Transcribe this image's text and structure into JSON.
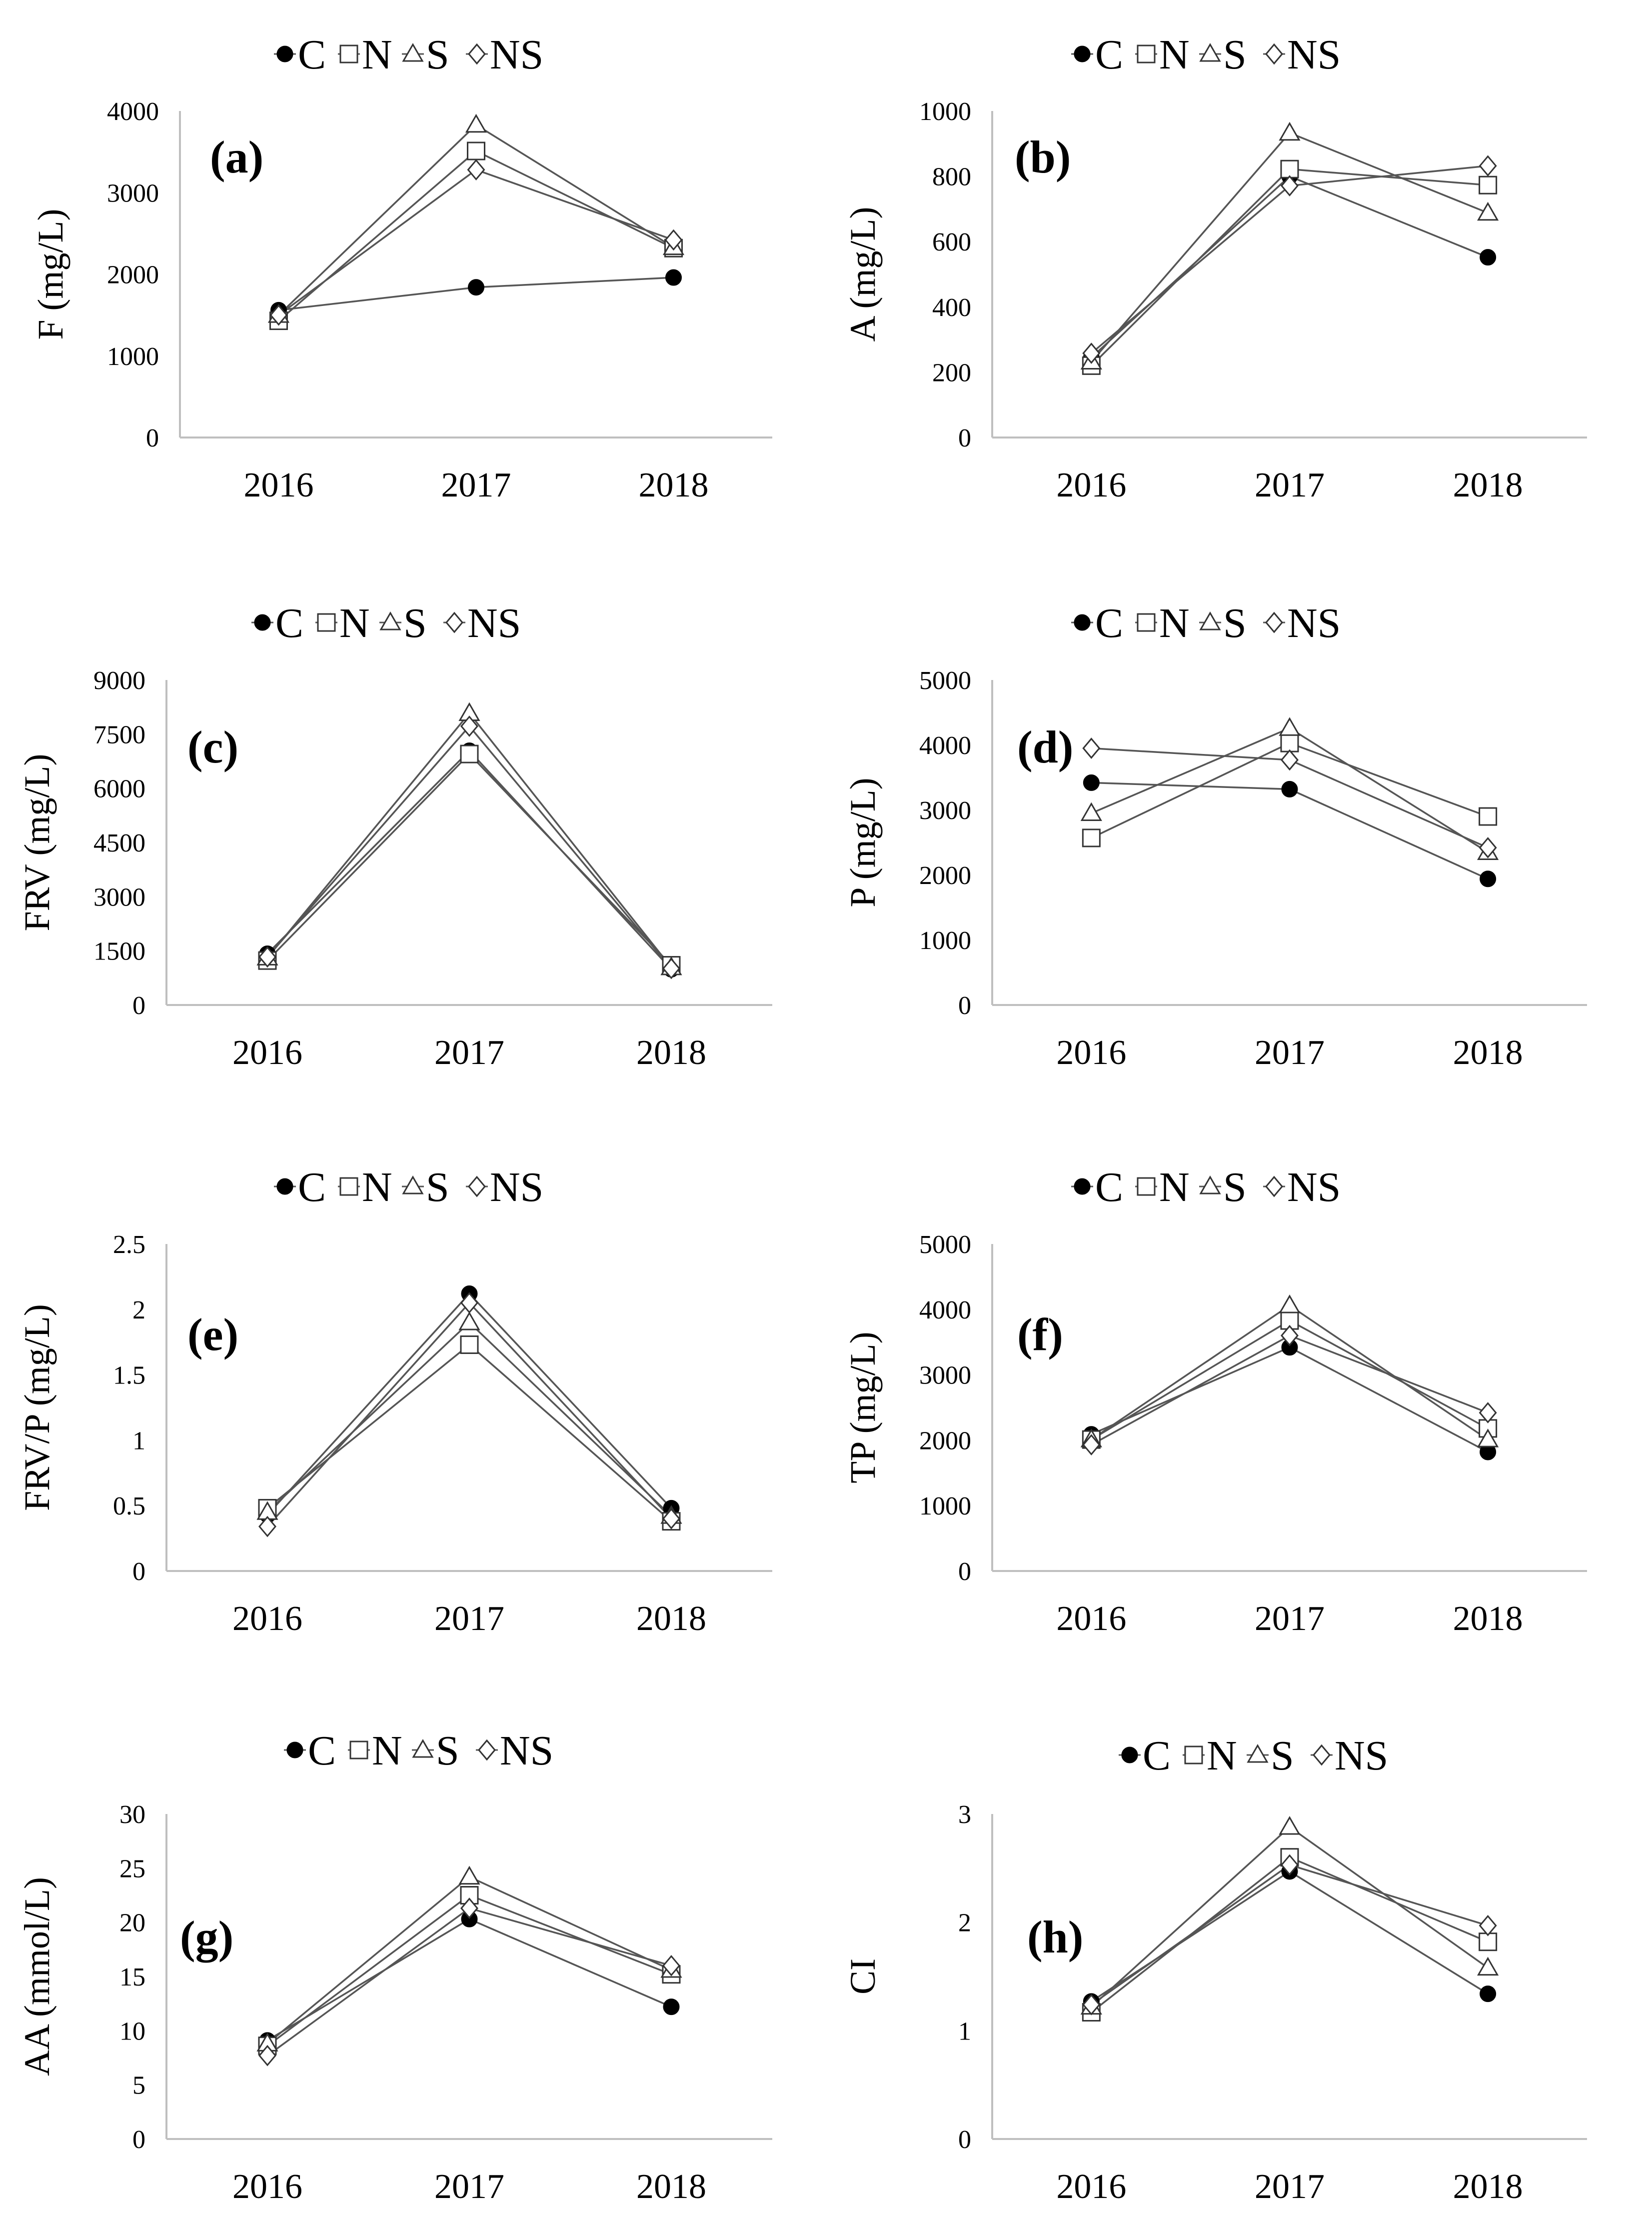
{
  "figure": {
    "legend": [
      "C",
      "N",
      "S",
      "NS"
    ],
    "colors": {
      "line": "#555555",
      "marker_fill_C": "#000000",
      "marker_open": "#ffffff",
      "axis": "#bfbfbf"
    }
  },
  "chart_data": [
    {
      "type": "line",
      "label": "(a)",
      "ylabel": "F (mg/L)",
      "categories": [
        "2016",
        "2017",
        "2018"
      ],
      "ylim": [
        0,
        4000
      ],
      "yticks": [
        "0",
        "1000",
        "2000",
        "3000",
        "4000"
      ],
      "series": [
        {
          "name": "C",
          "values": [
            1560,
            1840,
            1960
          ]
        },
        {
          "name": "N",
          "values": [
            1430,
            3510,
            2320
          ]
        },
        {
          "name": "S",
          "values": [
            1500,
            3830,
            2330
          ]
        },
        {
          "name": "NS",
          "values": [
            1500,
            3280,
            2420
          ]
        }
      ]
    },
    {
      "type": "line",
      "label": "(b)",
      "ylabel": "A (mg/L)",
      "categories": [
        "2016",
        "2017",
        "2018"
      ],
      "ylim": [
        0,
        1000
      ],
      "yticks": [
        "0",
        "200",
        "400",
        "600",
        "800",
        "1000"
      ],
      "series": [
        {
          "name": "C",
          "values": [
            245,
            800,
            552
          ]
        },
        {
          "name": "N",
          "values": [
            220,
            822,
            773
          ]
        },
        {
          "name": "S",
          "values": [
            232,
            933,
            688
          ]
        },
        {
          "name": "NS",
          "values": [
            258,
            771,
            832
          ]
        }
      ]
    },
    {
      "type": "line",
      "label": "(c)",
      "ylabel": "FRV (mg/L)",
      "categories": [
        "2016",
        "2017",
        "2018"
      ],
      "ylim": [
        0,
        9000
      ],
      "yticks": [
        "0",
        "1500",
        "3000",
        "4500",
        "6000",
        "7500",
        "9000"
      ],
      "series": [
        {
          "name": "C",
          "values": [
            1420,
            7040,
            990
          ]
        },
        {
          "name": "N",
          "values": [
            1230,
            6950,
            1100
          ]
        },
        {
          "name": "S",
          "values": [
            1310,
            8080,
            1040
          ]
        },
        {
          "name": "NS",
          "values": [
            1330,
            7720,
            1010
          ]
        }
      ]
    },
    {
      "type": "line",
      "label": "(d)",
      "ylabel": "P (mg/L)",
      "categories": [
        "2016",
        "2017",
        "2018"
      ],
      "ylim": [
        0,
        5000
      ],
      "yticks": [
        "0",
        "1000",
        "2000",
        "3000",
        "4000",
        "5000"
      ],
      "series": [
        {
          "name": "C",
          "values": [
            3420,
            3320,
            1940
          ]
        },
        {
          "name": "N",
          "values": [
            2570,
            4030,
            2900
          ]
        },
        {
          "name": "S",
          "values": [
            2950,
            4260,
            2350
          ]
        },
        {
          "name": "NS",
          "values": [
            3950,
            3770,
            2420
          ]
        }
      ]
    },
    {
      "type": "line",
      "label": "(e)",
      "ylabel": "FRV/P (mg/L)",
      "categories": [
        "2016",
        "2017",
        "2018"
      ],
      "ylim": [
        0,
        2.5
      ],
      "yticks": [
        "0",
        "0.5",
        "1",
        "1.5",
        "2",
        "2.5"
      ],
      "series": [
        {
          "name": "C",
          "values": [
            0.43,
            2.12,
            0.48
          ]
        },
        {
          "name": "N",
          "values": [
            0.48,
            1.73,
            0.38
          ]
        },
        {
          "name": "S",
          "values": [
            0.45,
            1.9,
            0.42
          ]
        },
        {
          "name": "NS",
          "values": [
            0.34,
            2.05,
            0.4
          ]
        }
      ]
    },
    {
      "type": "line",
      "label": "(f)",
      "ylabel": "TP (mg/L)",
      "categories": [
        "2016",
        "2017",
        "2018"
      ],
      "ylim": [
        0,
        5000
      ],
      "yticks": [
        "0",
        "1000",
        "2000",
        "3000",
        "4000",
        "5000"
      ],
      "series": [
        {
          "name": "C",
          "values": [
            2090,
            3420,
            1820
          ]
        },
        {
          "name": "N",
          "values": [
            2010,
            3830,
            2180
          ]
        },
        {
          "name": "S",
          "values": [
            2010,
            4060,
            2010
          ]
        },
        {
          "name": "NS",
          "values": [
            1930,
            3600,
            2420
          ]
        }
      ]
    },
    {
      "type": "line",
      "label": "(g)",
      "ylabel": "AA (mmol/L)",
      "categories": [
        "2016",
        "2017",
        "2018"
      ],
      "ylim": [
        0,
        30
      ],
      "yticks": [
        "0",
        "5",
        "10",
        "15",
        "20",
        "25",
        "30"
      ],
      "series": [
        {
          "name": "C",
          "values": [
            9.1,
            20.3,
            12.2
          ]
        },
        {
          "name": "N",
          "values": [
            8.6,
            22.5,
            15.2
          ]
        },
        {
          "name": "S",
          "values": [
            8.8,
            24.2,
            15.6
          ]
        },
        {
          "name": "NS",
          "values": [
            7.7,
            21.3,
            16.0
          ]
        }
      ]
    },
    {
      "type": "line",
      "label": "(h)",
      "ylabel": "CI",
      "categories": [
        "2016",
        "2017",
        "2018"
      ],
      "ylim": [
        0,
        3
      ],
      "yticks": [
        "0",
        "1",
        "2",
        "3"
      ],
      "series": [
        {
          "name": "C",
          "values": [
            1.27,
            2.47,
            1.34
          ]
        },
        {
          "name": "N",
          "values": [
            1.17,
            2.6,
            1.82
          ]
        },
        {
          "name": "S",
          "values": [
            1.22,
            2.88,
            1.58
          ]
        },
        {
          "name": "NS",
          "values": [
            1.24,
            2.53,
            1.97
          ]
        }
      ]
    }
  ]
}
